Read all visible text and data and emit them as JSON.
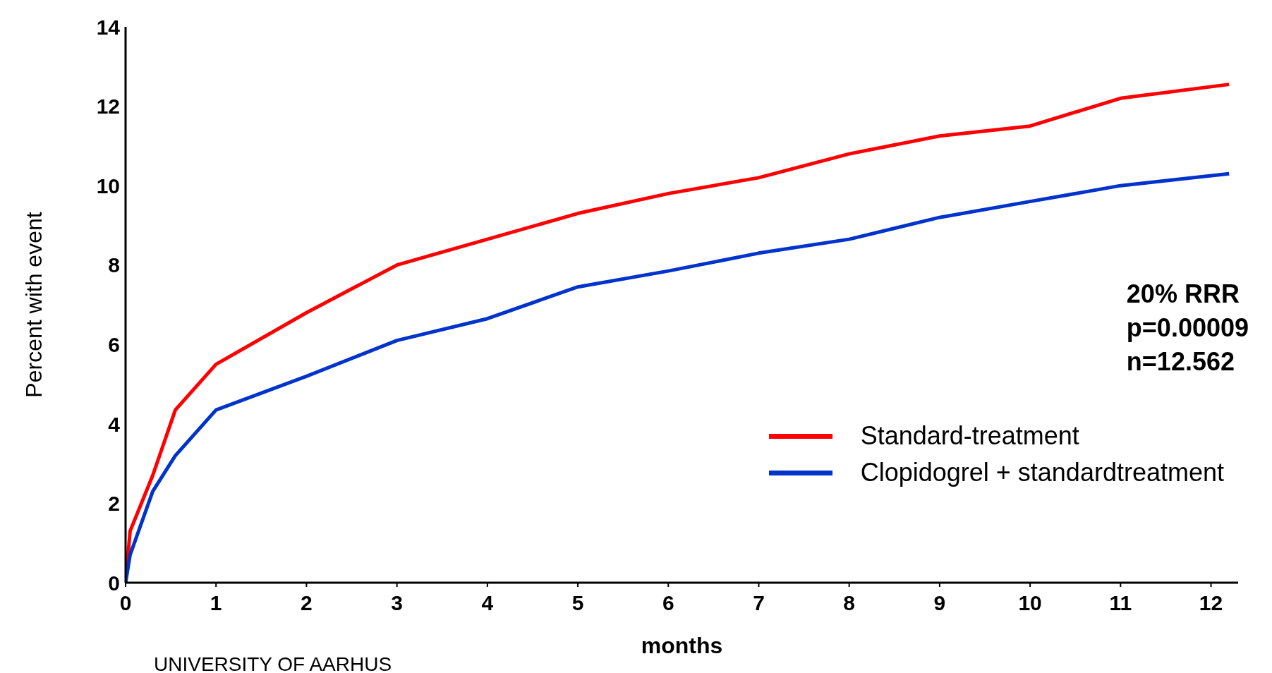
{
  "chart_data": {
    "type": "line",
    "xlabel": "months",
    "ylabel": "Percent with event",
    "x": [
      0,
      0.05,
      0.3,
      0.55,
      1,
      2,
      3,
      4,
      5,
      6,
      7,
      8,
      9,
      10,
      11,
      12.2
    ],
    "series": [
      {
        "name": "Standard-treatment",
        "color": "#ff0000",
        "values": [
          0,
          1.3,
          2.7,
          4.35,
          5.5,
          6.8,
          8.0,
          8.65,
          9.3,
          9.8,
          10.2,
          10.8,
          11.25,
          11.5,
          12.2,
          12.55
        ]
      },
      {
        "name": "Clopidogrel + standardtreatment",
        "color": "#0033cc",
        "values": [
          0,
          0.7,
          2.3,
          3.2,
          4.35,
          5.2,
          6.1,
          6.65,
          7.45,
          7.85,
          8.3,
          8.65,
          9.2,
          9.6,
          10.0,
          10.3
        ]
      }
    ],
    "xlim": [
      0,
      12.3
    ],
    "xticks": [
      0,
      1,
      2,
      3,
      4,
      5,
      6,
      7,
      8,
      9,
      10,
      11,
      12
    ],
    "ylim": [
      0,
      14
    ],
    "yticks": [
      0,
      2,
      4,
      6,
      8,
      10,
      12,
      14
    ],
    "grid": false,
    "legend": "bottom right",
    "marker": "none",
    "line_style": "solid",
    "annotations": [
      "20% RRR",
      "p=0.00009",
      "n=12.562",
      "UNIVERSITY OF AARHUS"
    ]
  }
}
